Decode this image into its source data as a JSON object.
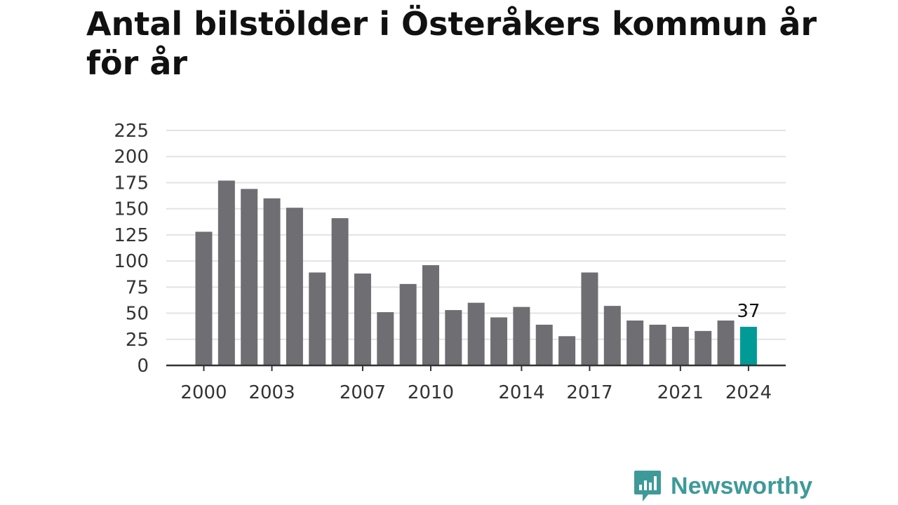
{
  "page": {
    "title": "Antal bilstölder i Österåkers kommun år för år",
    "brand": "Newsworthy"
  },
  "colors": {
    "bar": "#6f6e73",
    "highlight": "#009b96",
    "grid": "#e3e3e3",
    "axis": "#333333",
    "brand": "#3e9a99"
  },
  "icons": {
    "brand_logo": "chart-speech-bubble-icon"
  },
  "chart_data": {
    "type": "bar",
    "title": "Antal bilstölder i Österåkers kommun år för år",
    "xlabel": "",
    "ylabel": "",
    "categories": [
      2000,
      2001,
      2002,
      2003,
      2004,
      2005,
      2006,
      2007,
      2008,
      2009,
      2010,
      2011,
      2012,
      2013,
      2014,
      2015,
      2016,
      2017,
      2018,
      2019,
      2020,
      2021,
      2022,
      2023,
      2024
    ],
    "values": [
      128,
      177,
      169,
      160,
      151,
      89,
      141,
      88,
      51,
      78,
      96,
      53,
      60,
      46,
      56,
      39,
      28,
      89,
      57,
      43,
      39,
      37,
      33,
      43,
      37
    ],
    "ylim": [
      0,
      225
    ],
    "yticks": [
      0,
      25,
      50,
      75,
      100,
      125,
      150,
      175,
      200,
      225
    ],
    "xticks": [
      2000,
      2003,
      2007,
      2010,
      2014,
      2017,
      2021,
      2024
    ],
    "highlight": {
      "category": 2024,
      "label": "37"
    },
    "grid": true,
    "legend": "none"
  }
}
